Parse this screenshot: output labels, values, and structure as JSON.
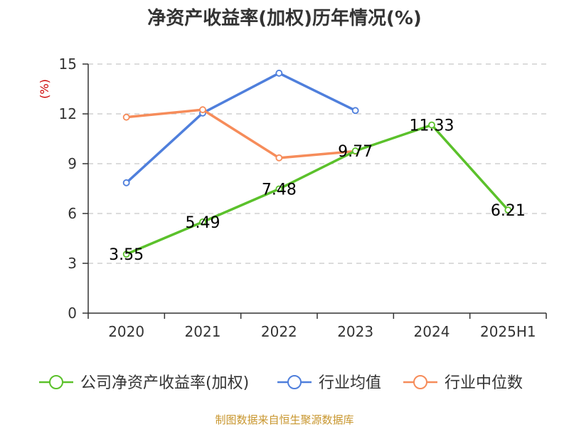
{
  "chart_data": {
    "type": "line",
    "title": "净资产收益率(加权)历年情况(%)",
    "ylabel": "(%)",
    "ylim": [
      0,
      15
    ],
    "yticks": [
      0,
      3,
      6,
      9,
      12,
      15
    ],
    "grid": "horizontal-dashed",
    "legend_position": "bottom",
    "categories": [
      "2020",
      "2021",
      "2022",
      "2023",
      "2024",
      "2025H1"
    ],
    "series": [
      {
        "name": "公司净资产收益率(加权)",
        "color": "#5bc12b",
        "values": [
          3.55,
          5.49,
          7.48,
          9.77,
          11.33,
          6.21
        ],
        "labels": [
          "3.55",
          "5.49",
          "7.48",
          "9.77",
          "11.33",
          "6.21"
        ]
      },
      {
        "name": "行业均值",
        "color": "#4f7fdc",
        "values": [
          7.85,
          12.05,
          14.45,
          12.2,
          null,
          null
        ]
      },
      {
        "name": "行业中位数",
        "color": "#f68c5a",
        "values": [
          11.8,
          12.25,
          9.35,
          9.75,
          null,
          null
        ]
      }
    ],
    "source": "制图数据来自恒生聚源数据库"
  },
  "colors": {
    "axis": "#333333",
    "grid": "#c8c8c8",
    "unit_label": "#cc0000",
    "source": "#c8962e",
    "marker_fill": "#ffffff"
  }
}
